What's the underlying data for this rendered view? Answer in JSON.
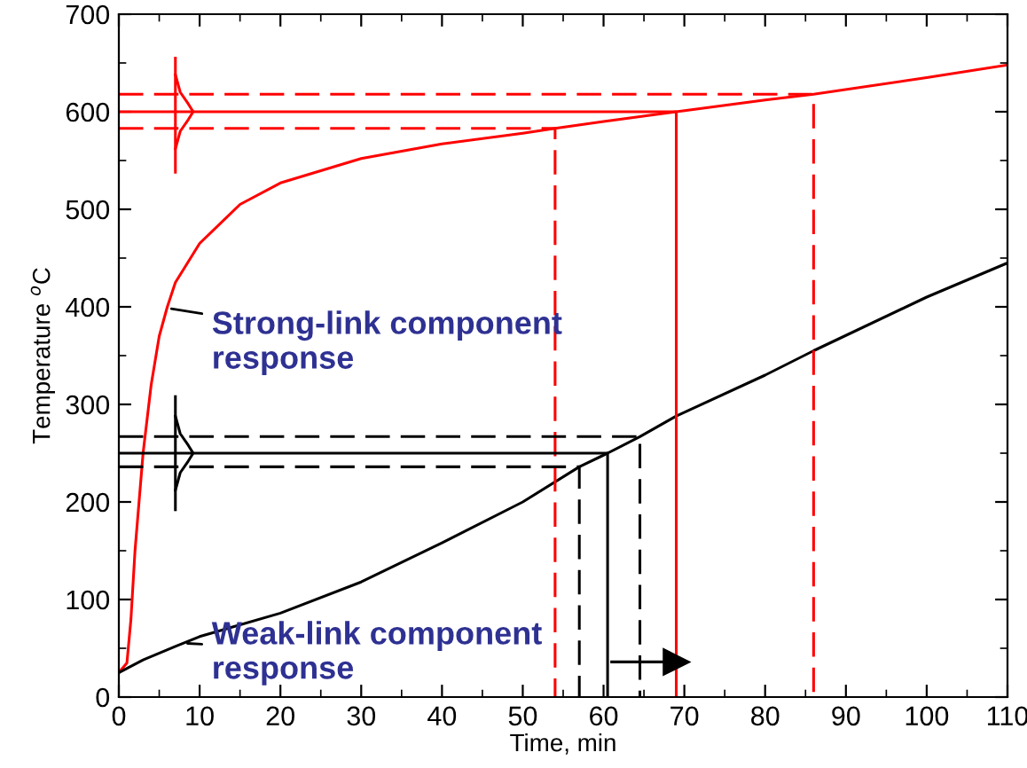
{
  "chart_data": {
    "type": "line",
    "xlabel": "Time, min",
    "ylabel": "Temperature $^{o}$C",
    "xlim": [
      0,
      110
    ],
    "ylim": [
      0,
      700
    ],
    "xticks": [
      0,
      10,
      20,
      30,
      40,
      50,
      60,
      70,
      80,
      90,
      100,
      110
    ],
    "yticks": [
      0,
      100,
      200,
      300,
      400,
      500,
      600,
      700
    ],
    "grid": false,
    "legend": false,
    "series": [
      {
        "color": "#ff0000",
        "line_style": "solid",
        "x": [
          0,
          1,
          1.5,
          2,
          3,
          4,
          5,
          6,
          7,
          10,
          15,
          20,
          30,
          40,
          50,
          54,
          60,
          69,
          80,
          86,
          100,
          110
        ],
        "values": [
          25,
          35,
          80,
          150,
          250,
          320,
          370,
          400,
          425,
          465,
          505,
          527,
          552,
          567,
          578,
          583,
          590,
          600,
          612,
          618,
          635,
          648
        ]
      },
      {
        "color": "#000000",
        "line_style": "solid",
        "x": [
          0,
          3,
          7,
          10,
          20,
          30,
          40,
          50,
          57,
          60.5,
          64.5,
          69,
          80,
          86,
          100,
          110
        ],
        "values": [
          25,
          38,
          52,
          62,
          86,
          118,
          158,
          200,
          236,
          250,
          267,
          288,
          330,
          355,
          410,
          445
        ]
      },
      {
        "color": "#ff0000",
        "line_style": "solid",
        "x": [
          0,
          69,
          69
        ],
        "values": [
          600,
          600,
          0
        ]
      },
      {
        "color": "#ff0000",
        "line_style": "dashed",
        "x": [
          0,
          54,
          54
        ],
        "values": [
          583,
          583,
          0
        ]
      },
      {
        "color": "#ff0000",
        "line_style": "dashed",
        "x": [
          0,
          86,
          86
        ],
        "values": [
          618,
          618,
          0
        ]
      },
      {
        "color": "#000000",
        "line_style": "solid",
        "x": [
          0,
          60.5,
          60.5
        ],
        "values": [
          250,
          250,
          0
        ]
      },
      {
        "color": "#000000",
        "line_style": "dashed",
        "x": [
          0,
          57,
          57
        ],
        "values": [
          236,
          236,
          0
        ]
      },
      {
        "color": "#000000",
        "line_style": "dashed",
        "x": [
          0,
          64.5,
          64.5
        ],
        "values": [
          267,
          267,
          0
        ]
      },
      {
        "color": "#ff0000",
        "line_style": "solid",
        "x": [
          7,
          7
        ],
        "values": [
          538,
          655
        ]
      },
      {
        "color": "#ff0000",
        "line_style": "solid",
        "x": [
          7,
          7.6,
          8.6,
          9.2,
          8.6,
          7.6,
          7
        ],
        "values": [
          562,
          580,
          592,
          600,
          608,
          620,
          638
        ]
      },
      {
        "color": "#000000",
        "line_style": "solid",
        "x": [
          7,
          7
        ],
        "values": [
          192,
          308
        ]
      },
      {
        "color": "#000000",
        "line_style": "solid",
        "x": [
          7,
          7.6,
          8.6,
          9.2,
          8.6,
          7.6,
          7
        ],
        "values": [
          212,
          230,
          242,
          250,
          258,
          270,
          288
        ]
      },
      {
        "color": "#000000",
        "line_style": "solid",
        "marker": "triangle",
        "x": [
          61,
          69
        ],
        "values": [
          36,
          36
        ]
      }
    ],
    "annotations": [
      {
        "text": "Strong-link component\nresponse",
        "x": 6.5,
        "y": 398
      },
      {
        "text": "Weak-link component\nresponse",
        "x": 8.5,
        "y": 55
      }
    ]
  }
}
